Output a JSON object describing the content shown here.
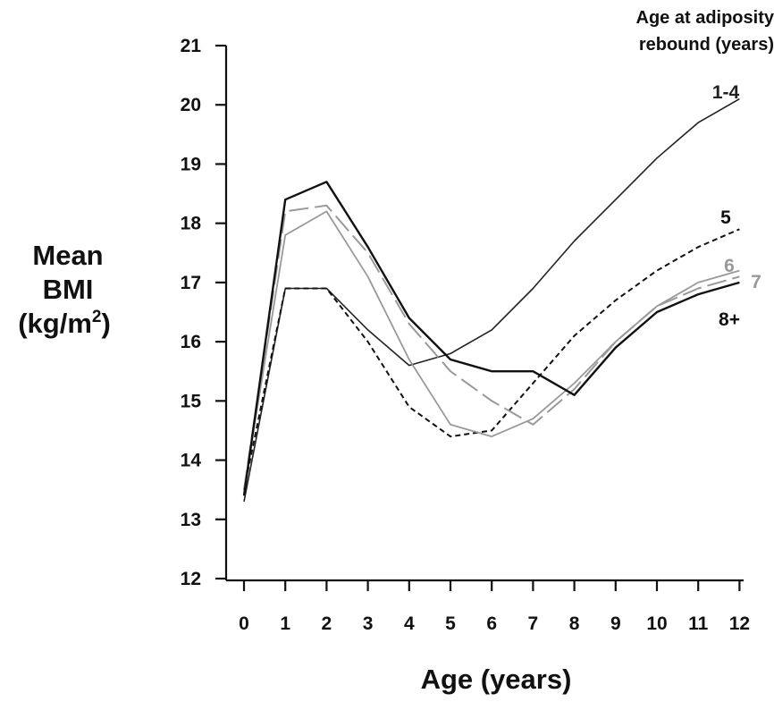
{
  "chart_data": {
    "type": "line",
    "xlabel": "Age (years)",
    "ylabel_lines": [
      "Mean",
      "BMI",
      "(kg/m",
      "2",
      ")"
    ],
    "legend_title_lines": [
      "Age at adiposity",
      "rebound (years)"
    ],
    "x": [
      0,
      1,
      2,
      3,
      4,
      5,
      6,
      7,
      8,
      9,
      10,
      11,
      12
    ],
    "x_ticks": [
      "0",
      "1",
      "2",
      "3",
      "4",
      "5",
      "6",
      "7",
      "8",
      "9",
      "10",
      "11",
      "12"
    ],
    "y_ticks": [
      "12",
      "13",
      "14",
      "15",
      "16",
      "17",
      "18",
      "19",
      "20",
      "21"
    ],
    "ylim": [
      12,
      21
    ],
    "xlim": [
      0,
      12
    ],
    "grid": false,
    "series": [
      {
        "name": "1-4",
        "color": "#222222",
        "style": "solid-thin",
        "points": [
          [
            0,
            13.3
          ],
          [
            1,
            16.9
          ],
          [
            2,
            16.9
          ],
          [
            3,
            16.2
          ],
          [
            4,
            15.6
          ],
          [
            5,
            15.8
          ],
          [
            6,
            16.2
          ],
          [
            7,
            16.9
          ],
          [
            8,
            17.7
          ],
          [
            9,
            18.4
          ],
          [
            10,
            19.1
          ],
          [
            11,
            19.7
          ],
          [
            12,
            20.1
          ]
        ]
      },
      {
        "name": "5",
        "color": "#111111",
        "style": "short-dash",
        "points": [
          [
            0,
            13.5
          ],
          [
            1,
            16.9
          ],
          [
            2,
            16.9
          ],
          [
            3,
            16.0
          ],
          [
            4,
            14.9
          ],
          [
            5,
            14.4
          ],
          [
            6,
            14.5
          ],
          [
            7,
            15.3
          ],
          [
            8,
            16.1
          ],
          [
            9,
            16.7
          ],
          [
            10,
            17.2
          ],
          [
            11,
            17.6
          ],
          [
            12,
            17.9
          ]
        ]
      },
      {
        "name": "6",
        "color": "#999999",
        "style": "solid",
        "points": [
          [
            0,
            13.5
          ],
          [
            1,
            17.8
          ],
          [
            2,
            18.2
          ],
          [
            3,
            17.1
          ],
          [
            4,
            15.7
          ],
          [
            5,
            14.6
          ],
          [
            6,
            14.4
          ],
          [
            7,
            14.7
          ],
          [
            8,
            15.3
          ],
          [
            9,
            16.0
          ],
          [
            10,
            16.6
          ],
          [
            11,
            17.0
          ],
          [
            12,
            17.2
          ]
        ]
      },
      {
        "name": "7",
        "color": "#999999",
        "style": "long-dash",
        "points": [
          [
            0,
            13.5
          ],
          [
            1,
            18.2
          ],
          [
            2,
            18.3
          ],
          [
            3,
            17.5
          ],
          [
            4,
            16.3
          ],
          [
            5,
            15.5
          ],
          [
            6,
            15.0
          ],
          [
            7,
            14.6
          ],
          [
            8,
            15.2
          ],
          [
            9,
            16.0
          ],
          [
            10,
            16.6
          ],
          [
            11,
            16.9
          ],
          [
            12,
            17.1
          ]
        ]
      },
      {
        "name": "8+",
        "color": "#111111",
        "style": "solid-thick",
        "points": [
          [
            0,
            13.4
          ],
          [
            1,
            18.4
          ],
          [
            2,
            18.7
          ],
          [
            3,
            17.6
          ],
          [
            4,
            16.4
          ],
          [
            5,
            15.7
          ],
          [
            6,
            15.5
          ],
          [
            7,
            15.5
          ],
          [
            8,
            15.1
          ],
          [
            9,
            15.9
          ],
          [
            10,
            16.5
          ],
          [
            11,
            16.8
          ],
          [
            12,
            17.0
          ]
        ]
      }
    ]
  }
}
